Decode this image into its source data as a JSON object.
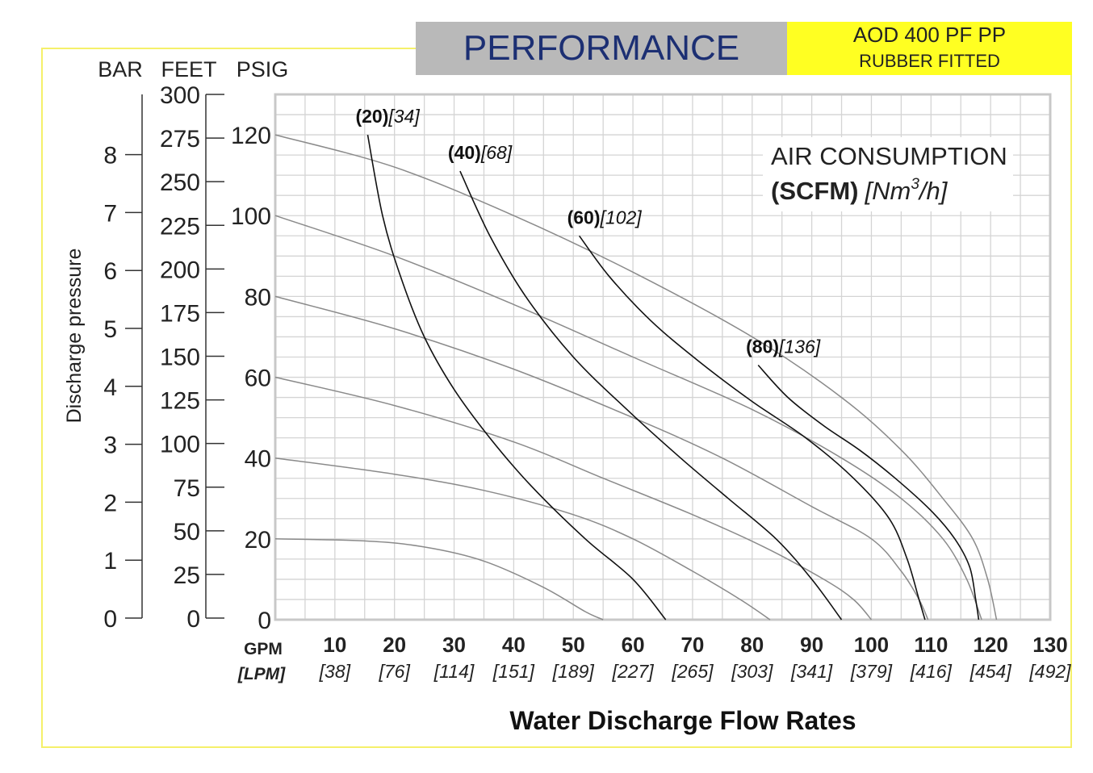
{
  "header": {
    "title": "PERFORMANCE",
    "model": "AOD 400 PF PP",
    "subtitle": "RUBBER FITTED"
  },
  "chart_data": {
    "type": "line",
    "xlabel": "Water Discharge Flow Rates",
    "x_unit_primary": "GPM",
    "x_unit_secondary": "[LPM]",
    "x_ticks": [
      {
        "gpm": "10",
        "lpm": "[38]"
      },
      {
        "gpm": "20",
        "lpm": "[76]"
      },
      {
        "gpm": "30",
        "lpm": "[114]"
      },
      {
        "gpm": "40",
        "lpm": "[151]"
      },
      {
        "gpm": "50",
        "lpm": "[189]"
      },
      {
        "gpm": "60",
        "lpm": "[227]"
      },
      {
        "gpm": "70",
        "lpm": "[265]"
      },
      {
        "gpm": "80",
        "lpm": "[303]"
      },
      {
        "gpm": "90",
        "lpm": "[341]"
      },
      {
        "gpm": "100",
        "lpm": "[379]"
      },
      {
        "gpm": "110",
        "lpm": "[416]"
      },
      {
        "gpm": "120",
        "lpm": "[454]"
      },
      {
        "gpm": "130",
        "lpm": "[492]"
      }
    ],
    "xlim": [
      0,
      130
    ],
    "ylim": [
      0,
      130
    ],
    "y_axis_label": "Discharge pressure",
    "y_scale_headers": [
      "BAR",
      "FEET",
      "PSIG"
    ],
    "psig_ticks": [
      "0",
      "20",
      "40",
      "60",
      "80",
      "100",
      "120"
    ],
    "feet_ticks": [
      "0",
      "25",
      "50",
      "75",
      "100",
      "125",
      "150",
      "175",
      "200",
      "225",
      "250",
      "275",
      "300"
    ],
    "bar_ticks": [
      "0",
      "1",
      "2",
      "3",
      "4",
      "5",
      "6",
      "7",
      "8"
    ],
    "grid": true,
    "air_consumption": {
      "title": "AIR CONSUMPTION",
      "units_bold": "(SCFM)",
      "units_italic": "[Nm",
      "units_sup": "3",
      "units_tail": "/h]"
    },
    "air_curves": [
      {
        "label_bold": "(20)",
        "label_italic": "[34]",
        "points": [
          [
            15.5,
            120
          ],
          [
            18,
            100
          ],
          [
            21,
            85
          ],
          [
            25,
            70
          ],
          [
            30,
            57
          ],
          [
            36,
            45
          ],
          [
            43,
            33
          ],
          [
            52,
            20
          ],
          [
            60,
            10
          ],
          [
            65.5,
            0
          ]
        ]
      },
      {
        "label_bold": "(40)",
        "label_italic": "[68]",
        "points": [
          [
            31,
            111
          ],
          [
            36,
            95
          ],
          [
            42,
            80
          ],
          [
            50,
            65
          ],
          [
            59,
            52
          ],
          [
            68,
            40
          ],
          [
            76,
            30
          ],
          [
            84,
            20
          ],
          [
            90,
            10
          ],
          [
            95,
            0
          ]
        ]
      },
      {
        "label_bold": "(60)",
        "label_italic": "[102]",
        "points": [
          [
            51,
            95
          ],
          [
            56,
            85
          ],
          [
            63,
            74
          ],
          [
            71,
            64
          ],
          [
            80,
            54
          ],
          [
            89,
            45
          ],
          [
            97,
            35
          ],
          [
            103,
            25
          ],
          [
            106,
            15
          ],
          [
            108,
            5
          ],
          [
            109,
            0
          ]
        ]
      },
      {
        "label_bold": "(80)",
        "label_italic": "[136]",
        "points": [
          [
            81,
            63
          ],
          [
            86,
            55
          ],
          [
            92,
            48
          ],
          [
            98,
            42
          ],
          [
            104,
            35
          ],
          [
            110,
            27
          ],
          [
            114,
            20
          ],
          [
            116.5,
            13
          ],
          [
            117.5,
            5
          ],
          [
            118,
            0
          ]
        ]
      }
    ],
    "pressure_curves": [
      {
        "points": [
          [
            0,
            120
          ],
          [
            20,
            112
          ],
          [
            40,
            100
          ],
          [
            60,
            86
          ],
          [
            80,
            70
          ],
          [
            95,
            55
          ],
          [
            105,
            42
          ],
          [
            112,
            30
          ],
          [
            117,
            20
          ],
          [
            119.5,
            10
          ],
          [
            121,
            0
          ]
        ]
      },
      {
        "points": [
          [
            0,
            100
          ],
          [
            20,
            90
          ],
          [
            40,
            78
          ],
          [
            60,
            65
          ],
          [
            80,
            52
          ],
          [
            95,
            40
          ],
          [
            105,
            30
          ],
          [
            112,
            20
          ],
          [
            116,
            10
          ],
          [
            118.5,
            0
          ]
        ]
      },
      {
        "points": [
          [
            0,
            80
          ],
          [
            20,
            72
          ],
          [
            40,
            62
          ],
          [
            60,
            50
          ],
          [
            75,
            40
          ],
          [
            90,
            28
          ],
          [
            100,
            20
          ],
          [
            105,
            12
          ],
          [
            108,
            5
          ],
          [
            109.5,
            0
          ]
        ]
      },
      {
        "points": [
          [
            0,
            60
          ],
          [
            20,
            53
          ],
          [
            40,
            44
          ],
          [
            55,
            35
          ],
          [
            70,
            26
          ],
          [
            82,
            18
          ],
          [
            92,
            10
          ],
          [
            97,
            5
          ],
          [
            100,
            0
          ]
        ]
      },
      {
        "points": [
          [
            0,
            40
          ],
          [
            20,
            36
          ],
          [
            35,
            32
          ],
          [
            50,
            26
          ],
          [
            60,
            20
          ],
          [
            70,
            12
          ],
          [
            78,
            5
          ],
          [
            83,
            0
          ]
        ]
      },
      {
        "points": [
          [
            0,
            20
          ],
          [
            15,
            19.5
          ],
          [
            25,
            18
          ],
          [
            35,
            14.5
          ],
          [
            45,
            8
          ],
          [
            52,
            2
          ],
          [
            55,
            0
          ]
        ]
      }
    ]
  }
}
